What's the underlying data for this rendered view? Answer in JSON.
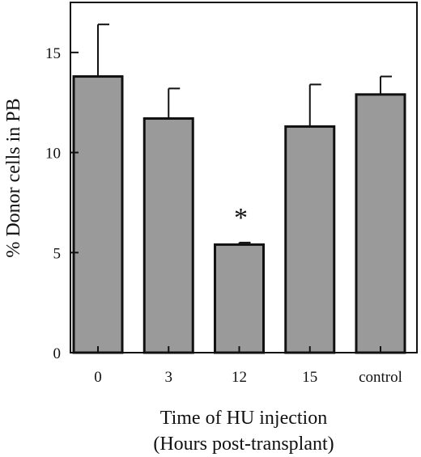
{
  "chart_data": {
    "type": "bar",
    "categories": [
      "0",
      "3",
      "12",
      "15",
      "control"
    ],
    "values": [
      13.8,
      11.7,
      5.4,
      11.3,
      12.9
    ],
    "errors": [
      2.6,
      1.5,
      0.1,
      2.1,
      0.9
    ],
    "significance": [
      "",
      "",
      "*",
      "",
      ""
    ],
    "xlabel_line1": "Time of HU injection",
    "xlabel_line2": "(Hours post-transplant)",
    "ylabel": "% Donor cells in PB",
    "ylim": [
      0,
      17.5
    ],
    "yticks": [
      0,
      5,
      10,
      15
    ],
    "bar_color": "#9a9a9a",
    "edge_color": "#111111",
    "grid": false
  }
}
